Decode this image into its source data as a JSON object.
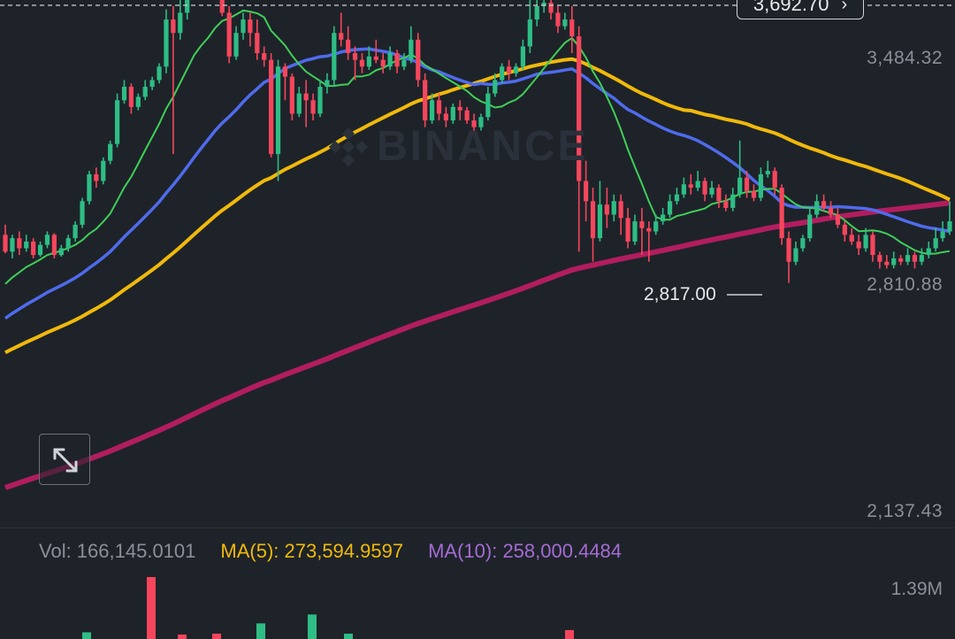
{
  "chart_data": {
    "type": "candlestick",
    "y_axis_labels": [
      "3,484.32",
      "2,810.88",
      "2,137.43"
    ],
    "current_price": "3,692.70",
    "low_marker": "2,817.00",
    "watermark": "BINANCE",
    "volume": {
      "vol_label": "Vol: 166,145.0101",
      "ma5_label": "MA(5): 273,594.9597",
      "ma10_label": "MA(10): 258,000.4484",
      "max_label": "1.39M"
    },
    "colors": {
      "up": "#2ebd85",
      "down": "#f6465d",
      "ma_green": "#3fcf58",
      "ma_blue": "#4f6bed",
      "ma_yellow": "#f0b90b",
      "ma_magenta": "#b21d5f",
      "background": "#1e2329"
    },
    "candles": [
      [
        2960,
        2910,
        2990,
        2905
      ],
      [
        2910,
        2950,
        2960,
        2890
      ],
      [
        2950,
        2920,
        2970,
        2900
      ],
      [
        2920,
        2940,
        2960,
        2910
      ],
      [
        2940,
        2900,
        2950,
        2890
      ],
      [
        2900,
        2930,
        2940,
        2895
      ],
      [
        2930,
        2960,
        2970,
        2920
      ],
      [
        2960,
        2900,
        2965,
        2890
      ],
      [
        2900,
        2920,
        2930,
        2895
      ],
      [
        2920,
        2950,
        2960,
        2910
      ],
      [
        2950,
        2990,
        3000,
        2940
      ],
      [
        2990,
        3060,
        3070,
        2980
      ],
      [
        3060,
        3140,
        3150,
        3050
      ],
      [
        3140,
        3120,
        3160,
        3100
      ],
      [
        3120,
        3180,
        3190,
        3110
      ],
      [
        3180,
        3230,
        3240,
        3170
      ],
      [
        3230,
        3360,
        3380,
        3220
      ],
      [
        3360,
        3400,
        3420,
        3350
      ],
      [
        3400,
        3340,
        3410,
        3320
      ],
      [
        3340,
        3370,
        3380,
        3330
      ],
      [
        3370,
        3400,
        3420,
        3360
      ],
      [
        3400,
        3420,
        3430,
        3390
      ],
      [
        3420,
        3460,
        3470,
        3410
      ],
      [
        3460,
        3600,
        3630,
        3440
      ],
      [
        3600,
        3560,
        3640,
        3200
      ],
      [
        3560,
        3620,
        3700,
        3540
      ],
      [
        3620,
        3680,
        3720,
        3600
      ],
      [
        3680,
        3720,
        3740,
        3660
      ],
      [
        3720,
        3700,
        3750,
        3690
      ],
      [
        3700,
        3680,
        3720,
        3660
      ],
      [
        3680,
        3690,
        3730,
        3660
      ],
      [
        3690,
        3620,
        3740,
        3610
      ],
      [
        3620,
        3490,
        3640,
        3470
      ],
      [
        3490,
        3560,
        3580,
        3480
      ],
      [
        3560,
        3600,
        3620,
        3540
      ],
      [
        3600,
        3560,
        3620,
        3520
      ],
      [
        3560,
        3500,
        3600,
        3480
      ],
      [
        3500,
        3480,
        3520,
        3460
      ],
      [
        3480,
        3200,
        3500,
        3190
      ],
      [
        3200,
        3460,
        3480,
        3120
      ],
      [
        3460,
        3430,
        3470,
        3360
      ],
      [
        3430,
        3320,
        3440,
        3300
      ],
      [
        3320,
        3380,
        3400,
        3310
      ],
      [
        3380,
        3360,
        3420,
        3280
      ],
      [
        3360,
        3320,
        3380,
        3300
      ],
      [
        3320,
        3400,
        3420,
        3310
      ],
      [
        3400,
        3420,
        3440,
        3380
      ],
      [
        3420,
        3560,
        3580,
        3400
      ],
      [
        3560,
        3540,
        3620,
        3520
      ],
      [
        3540,
        3500,
        3580,
        3480
      ],
      [
        3500,
        3480,
        3520,
        3420
      ],
      [
        3480,
        3460,
        3500,
        3440
      ],
      [
        3460,
        3490,
        3520,
        3450
      ],
      [
        3490,
        3480,
        3540,
        3470
      ],
      [
        3480,
        3460,
        3500,
        3440
      ],
      [
        3460,
        3500,
        3520,
        3450
      ],
      [
        3500,
        3460,
        3510,
        3440
      ],
      [
        3460,
        3480,
        3500,
        3450
      ],
      [
        3480,
        3540,
        3580,
        3470
      ],
      [
        3540,
        3420,
        3560,
        3400
      ],
      [
        3420,
        3300,
        3440,
        3280
      ],
      [
        3300,
        3360,
        3380,
        3290
      ],
      [
        3360,
        3320,
        3380,
        3300
      ],
      [
        3320,
        3300,
        3340,
        3280
      ],
      [
        3300,
        3340,
        3350,
        3290
      ],
      [
        3340,
        3330,
        3360,
        3300
      ],
      [
        3330,
        3300,
        3340,
        3290
      ],
      [
        3300,
        3280,
        3320,
        3260
      ],
      [
        3280,
        3310,
        3320,
        3270
      ],
      [
        3310,
        3380,
        3400,
        3300
      ],
      [
        3380,
        3420,
        3440,
        3370
      ],
      [
        3420,
        3460,
        3470,
        3410
      ],
      [
        3460,
        3440,
        3480,
        3420
      ],
      [
        3440,
        3460,
        3470,
        3430
      ],
      [
        3460,
        3520,
        3540,
        3450
      ],
      [
        3520,
        3600,
        3720,
        3500
      ],
      [
        3600,
        3640,
        3740,
        3580
      ],
      [
        3640,
        3650,
        3750,
        3620
      ],
      [
        3650,
        3620,
        3680,
        3600
      ],
      [
        3620,
        3580,
        3640,
        3560
      ],
      [
        3580,
        3600,
        3620,
        3570
      ],
      [
        3600,
        3550,
        3640,
        3500
      ],
      [
        3550,
        3120,
        3580,
        2910
      ],
      [
        3120,
        3060,
        3180,
        3000
      ],
      [
        3060,
        2950,
        3100,
        2880
      ],
      [
        2950,
        3050,
        3120,
        2940
      ],
      [
        3050,
        3020,
        3100,
        2980
      ],
      [
        3020,
        3060,
        3080,
        3000
      ],
      [
        3060,
        3010,
        3080,
        2960
      ],
      [
        3010,
        2940,
        3040,
        2920
      ],
      [
        2940,
        3000,
        3020,
        2930
      ],
      [
        3000,
        2980,
        3040,
        2900
      ],
      [
        2980,
        2970,
        3000,
        2880
      ],
      [
        2970,
        3000,
        3020,
        2960
      ],
      [
        3000,
        3020,
        3040,
        2990
      ],
      [
        3020,
        3060,
        3080,
        3010
      ],
      [
        3060,
        3080,
        3100,
        3050
      ],
      [
        3080,
        3110,
        3130,
        3070
      ],
      [
        3110,
        3100,
        3140,
        3080
      ],
      [
        3100,
        3120,
        3150,
        3090
      ],
      [
        3120,
        3080,
        3130,
        3060
      ],
      [
        3080,
        3100,
        3120,
        3070
      ],
      [
        3100,
        3060,
        3110,
        3040
      ],
      [
        3060,
        3040,
        3080,
        3030
      ],
      [
        3040,
        3080,
        3100,
        3030
      ],
      [
        3080,
        3130,
        3240,
        3070
      ],
      [
        3130,
        3090,
        3150,
        3070
      ],
      [
        3090,
        3070,
        3110,
        3060
      ],
      [
        3070,
        3140,
        3160,
        3060
      ],
      [
        3140,
        3150,
        3180,
        3130
      ],
      [
        3150,
        3100,
        3160,
        3080
      ],
      [
        3100,
        2950,
        3110,
        2930
      ],
      [
        2950,
        2880,
        2970,
        2817
      ],
      [
        2880,
        2920,
        2940,
        2870
      ],
      [
        2920,
        2950,
        2960,
        2910
      ],
      [
        2950,
        3020,
        3040,
        2940
      ],
      [
        3020,
        3060,
        3080,
        3010
      ],
      [
        3060,
        3040,
        3080,
        3030
      ],
      [
        3040,
        3020,
        3060,
        3010
      ],
      [
        3020,
        2990,
        3040,
        2980
      ],
      [
        2990,
        2960,
        3000,
        2940
      ],
      [
        2960,
        2940,
        2980,
        2930
      ],
      [
        2940,
        2920,
        2960,
        2900
      ],
      [
        2920,
        2960,
        2980,
        2910
      ],
      [
        2960,
        2900,
        2970,
        2880
      ],
      [
        2900,
        2880,
        2910,
        2860
      ],
      [
        2880,
        2870,
        2900,
        2860
      ],
      [
        2870,
        2890,
        2910,
        2860
      ],
      [
        2890,
        2880,
        2900,
        2870
      ],
      [
        2880,
        2900,
        2920,
        2870
      ],
      [
        2900,
        2880,
        2910,
        2860
      ],
      [
        2880,
        2900,
        2920,
        2870
      ],
      [
        2900,
        2920,
        2940,
        2890
      ],
      [
        2920,
        2950,
        2980,
        2910
      ],
      [
        2950,
        2970,
        3000,
        2940
      ],
      [
        2970,
        3000,
        3060,
        2960
      ]
    ],
    "volume_bars": [
      {
        "value": 0.15,
        "up": true
      },
      {
        "value": 1.39,
        "up": false
      },
      {
        "value": 0.1,
        "up": false
      },
      {
        "value": 0.12,
        "up": false
      },
      {
        "value": 0.55,
        "up": true
      },
      {
        "value": 0.12,
        "up": true
      },
      {
        "value": 0.35,
        "up": true
      },
      {
        "value": 0.2,
        "up": false
      }
    ]
  }
}
